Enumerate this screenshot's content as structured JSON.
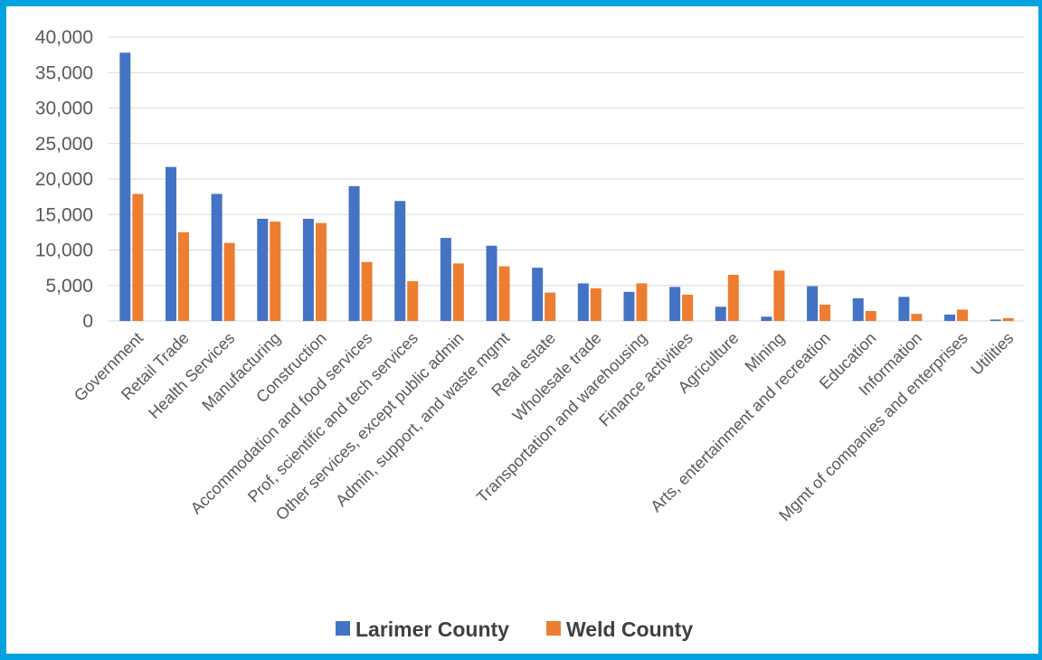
{
  "chart_data": {
    "type": "bar",
    "categories": [
      "Government",
      "Retail Trade",
      "Health Services",
      "Manufacturing",
      "Construction",
      "Accommodation and food services",
      "Prof, scientific and tech services",
      "Other services, except public admin",
      "Admin, support, and waste mgmt",
      "Real estate",
      "Wholesale trade",
      "Transportation and warehousing",
      "Finance activities",
      "Agriculture",
      "Mining",
      "Arts, entertainment and recreation",
      "Education",
      "Information",
      "Mgmt of companies and enterprises",
      "Utilities"
    ],
    "series": [
      {
        "name": "Larimer County",
        "color": "#4472c4",
        "values": [
          37800,
          21700,
          17900,
          14400,
          14400,
          19000,
          16900,
          11700,
          10600,
          7500,
          5300,
          4100,
          4800,
          2000,
          600,
          4900,
          3200,
          3400,
          900,
          200
        ]
      },
      {
        "name": "Weld County",
        "color": "#ed7d31",
        "values": [
          17900,
          12500,
          11000,
          14000,
          13800,
          8300,
          5600,
          8100,
          7700,
          4000,
          4600,
          5300,
          3700,
          6500,
          7100,
          2300,
          1400,
          1000,
          1600,
          400
        ]
      }
    ],
    "ylim": [
      0,
      40000
    ],
    "yticks": [
      "0",
      "5,000",
      "10,000",
      "15,000",
      "20,000",
      "25,000",
      "30,000",
      "35,000",
      "40,000"
    ],
    "ytick_values": [
      0,
      5000,
      10000,
      15000,
      20000,
      25000,
      30000,
      35000,
      40000
    ],
    "grid": true,
    "legend_position": "bottom",
    "gridline_color": "#d9d9d9",
    "frame_color": "#00a3e0"
  }
}
